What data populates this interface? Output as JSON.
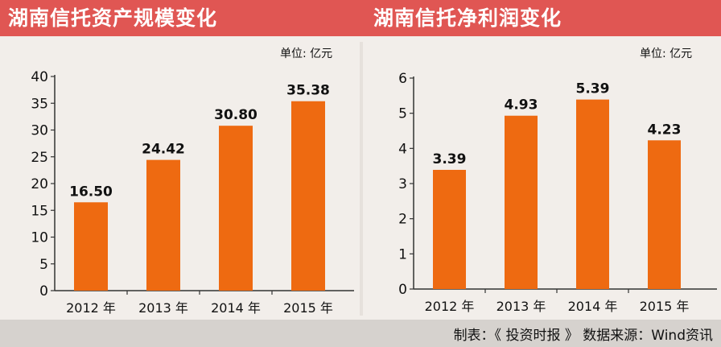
{
  "colors": {
    "header_bg": "#e05653",
    "bar": "#ee6a11",
    "panel_bg": "#f2eeea",
    "footer_bg": "#d6d2ce",
    "axis": "#333333"
  },
  "header": {
    "left_title": "湖南信托资产规模变化",
    "right_title": "湖南信托净利润变化"
  },
  "footer": {
    "source": "制表：《 投资时报 》 数据来源：Wind资讯"
  },
  "chart_data": [
    {
      "type": "bar",
      "title": "湖南信托资产规模变化",
      "unit_label": "单位: 亿元",
      "categories": [
        "2012 年",
        "2013 年",
        "2014 年",
        "2015 年"
      ],
      "values": [
        16.5,
        24.42,
        30.8,
        35.38
      ],
      "value_labels": [
        "16.50",
        "24.42",
        "30.80",
        "35.38"
      ],
      "ylim": [
        0,
        40
      ],
      "yticks": [
        0,
        5,
        10,
        15,
        20,
        25,
        30,
        35,
        40
      ],
      "ytick_labels": [
        "0",
        "5",
        "10",
        "15",
        "20",
        "25",
        "30",
        "35",
        "40"
      ],
      "xlabel": "",
      "ylabel": "",
      "grid": false
    },
    {
      "type": "bar",
      "title": "湖南信托净利润变化",
      "unit_label": "单位: 亿元",
      "categories": [
        "2012 年",
        "2013 年",
        "2014 年",
        "2015 年"
      ],
      "values": [
        3.39,
        4.93,
        5.39,
        4.23
      ],
      "value_labels": [
        "3.39",
        "4.93",
        "5.39",
        "4.23"
      ],
      "ylim": [
        0,
        6
      ],
      "yticks": [
        0,
        1,
        2,
        3,
        4,
        5,
        6
      ],
      "ytick_labels": [
        "0",
        "1",
        "2",
        "3",
        "4",
        "5",
        "6"
      ],
      "xlabel": "",
      "ylabel": "",
      "grid": false
    }
  ]
}
